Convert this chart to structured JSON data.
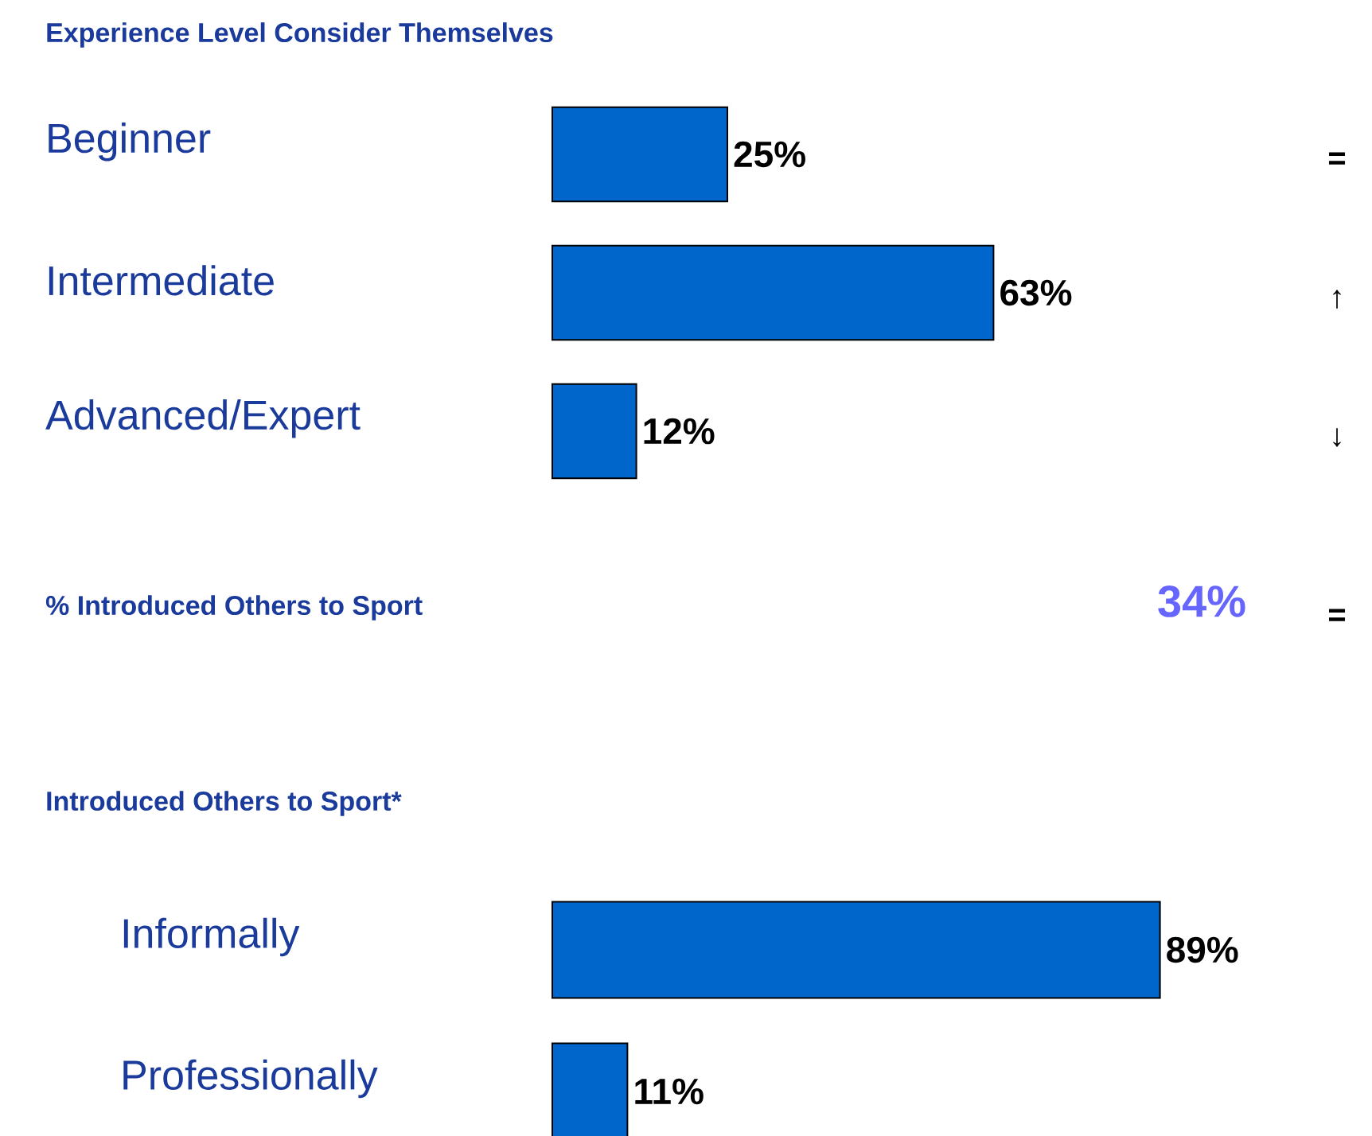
{
  "chart_data": [
    {
      "type": "bar",
      "orientation": "horizontal",
      "title": "Experience Level Consider Themselves",
      "categories": [
        "Beginner",
        "Intermediate",
        "Advanced/Expert"
      ],
      "values": [
        25,
        63,
        12
      ],
      "value_labels": [
        "25%",
        "63%",
        "12%"
      ],
      "color": "#0066cc",
      "annotations": [
        "=",
        "↑",
        "↓"
      ]
    },
    {
      "type": "other",
      "title": "% Introduced Others to Sport",
      "annotations": [
        "34%",
        "="
      ]
    },
    {
      "type": "bar",
      "orientation": "horizontal",
      "title": "Introduced Others to Sport*",
      "categories": [
        "Informally",
        "Professionally"
      ],
      "values": [
        89,
        11
      ],
      "value_labels": [
        "89%",
        "11%"
      ],
      "color": "#0066cc"
    }
  ]
}
